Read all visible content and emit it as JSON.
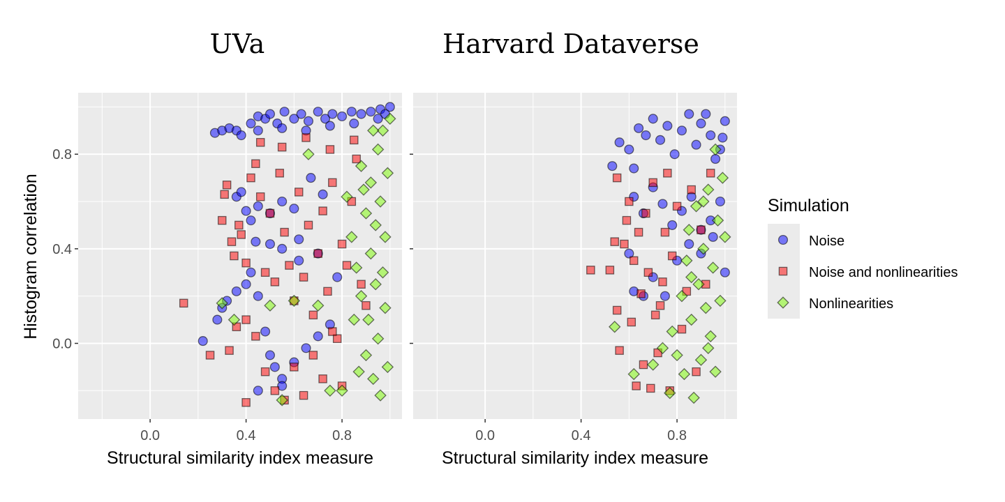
{
  "chart_data": {
    "type": "scatter",
    "facets": [
      {
        "title": "UVa"
      },
      {
        "title": "Harvard Dataverse"
      }
    ],
    "xlabel": "Structural similarity index measure",
    "ylabel": "Histogram correlation",
    "xlim": [
      -0.3,
      1.05
    ],
    "ylim": [
      -0.32,
      1.06
    ],
    "x_ticks": [
      0.0,
      0.4,
      0.8
    ],
    "x_tick_labels": [
      "0.0",
      "0.4",
      "0.8"
    ],
    "y_ticks": [
      0.0,
      0.4,
      0.8
    ],
    "y_tick_labels": [
      "0.0",
      "0.4",
      "0.8"
    ],
    "legend": {
      "title": "Simulation",
      "position": "right",
      "entries": [
        {
          "name": "Noise",
          "shape": "circle",
          "color": "#0000ff"
        },
        {
          "name": "Noise and nonlinearities",
          "shape": "square",
          "color": "#ff0000"
        },
        {
          "name": "Nonlinearities",
          "shape": "diamond",
          "color": "#7cfc00"
        }
      ]
    },
    "series": [
      {
        "name": "Noise",
        "facet": 0,
        "points": [
          [
            0.27,
            0.89
          ],
          [
            0.3,
            0.9
          ],
          [
            0.33,
            0.91
          ],
          [
            0.36,
            0.9
          ],
          [
            0.38,
            0.88
          ],
          [
            0.42,
            0.93
          ],
          [
            0.45,
            0.96
          ],
          [
            0.48,
            0.95
          ],
          [
            0.5,
            0.97
          ],
          [
            0.53,
            0.93
          ],
          [
            0.56,
            0.98
          ],
          [
            0.6,
            0.95
          ],
          [
            0.63,
            0.97
          ],
          [
            0.66,
            0.94
          ],
          [
            0.7,
            0.98
          ],
          [
            0.73,
            0.95
          ],
          [
            0.76,
            0.97
          ],
          [
            0.8,
            0.96
          ],
          [
            0.84,
            0.98
          ],
          [
            0.88,
            0.97
          ],
          [
            0.92,
            0.98
          ],
          [
            0.96,
            0.99
          ],
          [
            1.0,
            1.0
          ],
          [
            0.98,
            0.97
          ],
          [
            0.45,
            0.9
          ],
          [
            0.55,
            0.91
          ],
          [
            0.65,
            0.9
          ],
          [
            0.75,
            0.92
          ],
          [
            0.85,
            0.93
          ],
          [
            0.95,
            0.95
          ],
          [
            0.36,
            0.62
          ],
          [
            0.38,
            0.64
          ],
          [
            0.4,
            0.56
          ],
          [
            0.42,
            0.52
          ],
          [
            0.45,
            0.58
          ],
          [
            0.5,
            0.55
          ],
          [
            0.55,
            0.6
          ],
          [
            0.6,
            0.57
          ],
          [
            0.67,
            0.7
          ],
          [
            0.72,
            0.63
          ],
          [
            0.44,
            0.43
          ],
          [
            0.5,
            0.42
          ],
          [
            0.55,
            0.4
          ],
          [
            0.62,
            0.44
          ],
          [
            0.7,
            0.38
          ],
          [
            0.28,
            0.1
          ],
          [
            0.3,
            0.15
          ],
          [
            0.32,
            0.18
          ],
          [
            0.36,
            0.22
          ],
          [
            0.4,
            0.25
          ],
          [
            0.45,
            0.2
          ],
          [
            0.48,
            0.05
          ],
          [
            0.5,
            -0.05
          ],
          [
            0.52,
            -0.1
          ],
          [
            0.55,
            -0.15
          ],
          [
            0.6,
            -0.08
          ],
          [
            0.65,
            -0.02
          ],
          [
            0.7,
            0.03
          ],
          [
            0.75,
            0.08
          ],
          [
            0.22,
            0.01
          ],
          [
            0.45,
            -0.2
          ],
          [
            0.55,
            -0.18
          ],
          [
            0.42,
            0.3
          ],
          [
            0.62,
            0.35
          ],
          [
            0.78,
            0.28
          ]
        ]
      },
      {
        "name": "Noise and nonlinearities",
        "facet": 0,
        "points": [
          [
            0.14,
            0.17
          ],
          [
            0.25,
            -0.05
          ],
          [
            0.33,
            -0.03
          ],
          [
            0.3,
            0.52
          ],
          [
            0.32,
            0.67
          ],
          [
            0.31,
            0.63
          ],
          [
            0.34,
            0.43
          ],
          [
            0.35,
            0.37
          ],
          [
            0.37,
            0.5
          ],
          [
            0.38,
            0.46
          ],
          [
            0.4,
            0.34
          ],
          [
            0.4,
            -0.25
          ],
          [
            0.42,
            0.7
          ],
          [
            0.44,
            0.76
          ],
          [
            0.46,
            0.62
          ],
          [
            0.48,
            0.3
          ],
          [
            0.5,
            0.55
          ],
          [
            0.52,
            0.26
          ],
          [
            0.54,
            0.72
          ],
          [
            0.56,
            0.47
          ],
          [
            0.58,
            0.33
          ],
          [
            0.6,
            0.18
          ],
          [
            0.62,
            0.64
          ],
          [
            0.64,
            0.28
          ],
          [
            0.66,
            0.5
          ],
          [
            0.68,
            0.12
          ],
          [
            0.7,
            0.38
          ],
          [
            0.72,
            0.56
          ],
          [
            0.74,
            0.22
          ],
          [
            0.76,
            0.68
          ],
          [
            0.78,
            0.02
          ],
          [
            0.8,
            0.42
          ],
          [
            0.82,
            0.33
          ],
          [
            0.84,
            0.6
          ],
          [
            0.86,
            0.78
          ],
          [
            0.88,
            0.25
          ],
          [
            0.9,
            0.16
          ],
          [
            0.36,
            0.07
          ],
          [
            0.4,
            0.1
          ],
          [
            0.44,
            0.03
          ],
          [
            0.48,
            -0.12
          ],
          [
            0.52,
            -0.2
          ],
          [
            0.56,
            -0.24
          ],
          [
            0.6,
            -0.1
          ],
          [
            0.64,
            -0.22
          ],
          [
            0.68,
            -0.05
          ],
          [
            0.72,
            -0.15
          ],
          [
            0.76,
            0.05
          ],
          [
            0.8,
            -0.18
          ],
          [
            0.46,
            0.85
          ],
          [
            0.55,
            0.83
          ],
          [
            0.65,
            0.87
          ],
          [
            0.75,
            0.82
          ],
          [
            0.85,
            0.86
          ]
        ]
      },
      {
        "name": "Nonlinearities",
        "facet": 0,
        "points": [
          [
            0.3,
            0.17
          ],
          [
            0.35,
            0.1
          ],
          [
            0.5,
            0.16
          ],
          [
            0.55,
            -0.24
          ],
          [
            0.6,
            0.18
          ],
          [
            0.66,
            0.8
          ],
          [
            0.7,
            0.16
          ],
          [
            0.75,
            -0.2
          ],
          [
            0.8,
            -0.2
          ],
          [
            0.82,
            0.62
          ],
          [
            0.84,
            0.45
          ],
          [
            0.86,
            0.32
          ],
          [
            0.88,
            0.2
          ],
          [
            0.88,
            0.75
          ],
          [
            0.9,
            0.55
          ],
          [
            0.9,
            -0.05
          ],
          [
            0.91,
            0.1
          ],
          [
            0.92,
            0.38
          ],
          [
            0.92,
            0.68
          ],
          [
            0.93,
            -0.15
          ],
          [
            0.94,
            0.25
          ],
          [
            0.94,
            0.5
          ],
          [
            0.95,
            0.82
          ],
          [
            0.95,
            0.02
          ],
          [
            0.96,
            0.6
          ],
          [
            0.96,
            -0.22
          ],
          [
            0.97,
            0.3
          ],
          [
            0.97,
            0.9
          ],
          [
            0.98,
            0.15
          ],
          [
            0.98,
            0.45
          ],
          [
            0.99,
            0.72
          ],
          [
            0.99,
            -0.1
          ],
          [
            1.0,
            0.95
          ],
          [
            0.93,
            0.9
          ],
          [
            0.85,
            0.1
          ],
          [
            0.87,
            -0.12
          ],
          [
            0.89,
            0.65
          ]
        ]
      },
      {
        "name": "Noise",
        "facet": 1,
        "points": [
          [
            0.53,
            0.75
          ],
          [
            0.56,
            0.85
          ],
          [
            0.6,
            0.82
          ],
          [
            0.62,
            0.74
          ],
          [
            0.64,
            0.91
          ],
          [
            0.67,
            0.88
          ],
          [
            0.7,
            0.95
          ],
          [
            0.73,
            0.86
          ],
          [
            0.76,
            0.92
          ],
          [
            0.79,
            0.8
          ],
          [
            0.82,
            0.9
          ],
          [
            0.85,
            0.97
          ],
          [
            0.88,
            0.84
          ],
          [
            0.9,
            0.93
          ],
          [
            0.92,
            0.97
          ],
          [
            0.94,
            0.88
          ],
          [
            0.96,
            0.78
          ],
          [
            0.98,
            0.82
          ],
          [
            1.0,
            0.94
          ],
          [
            0.99,
            0.87
          ],
          [
            0.62,
            0.62
          ],
          [
            0.66,
            0.55
          ],
          [
            0.7,
            0.66
          ],
          [
            0.74,
            0.59
          ],
          [
            0.78,
            0.5
          ],
          [
            0.82,
            0.56
          ],
          [
            0.86,
            0.62
          ],
          [
            0.9,
            0.48
          ],
          [
            0.94,
            0.52
          ],
          [
            0.98,
            0.6
          ],
          [
            0.62,
            0.22
          ],
          [
            0.66,
            0.2
          ],
          [
            0.7,
            0.28
          ],
          [
            0.75,
            0.2
          ],
          [
            0.8,
            0.35
          ],
          [
            0.85,
            0.42
          ],
          [
            0.9,
            0.38
          ],
          [
            0.95,
            0.45
          ],
          [
            1.0,
            0.3
          ],
          [
            0.6,
            0.38
          ]
        ]
      },
      {
        "name": "Noise and nonlinearities",
        "facet": 1,
        "points": [
          [
            0.44,
            0.31
          ],
          [
            0.52,
            0.31
          ],
          [
            0.55,
            0.7
          ],
          [
            0.54,
            0.43
          ],
          [
            0.55,
            0.14
          ],
          [
            0.56,
            -0.03
          ],
          [
            0.58,
            0.42
          ],
          [
            0.59,
            0.52
          ],
          [
            0.6,
            0.6
          ],
          [
            0.61,
            0.09
          ],
          [
            0.62,
            0.35
          ],
          [
            0.63,
            -0.18
          ],
          [
            0.64,
            0.47
          ],
          [
            0.65,
            0.21
          ],
          [
            0.66,
            -0.09
          ],
          [
            0.67,
            0.55
          ],
          [
            0.68,
            0.3
          ],
          [
            0.7,
            0.68
          ],
          [
            0.71,
            0.12
          ],
          [
            0.72,
            -0.04
          ],
          [
            0.74,
            0.26
          ],
          [
            0.75,
            0.47
          ],
          [
            0.76,
            0.72
          ],
          [
            0.77,
            -0.2
          ],
          [
            0.78,
            0.37
          ],
          [
            0.8,
            0.58
          ],
          [
            0.82,
            0.06
          ],
          [
            0.84,
            0.22
          ],
          [
            0.86,
            0.65
          ],
          [
            0.88,
            -0.12
          ],
          [
            0.9,
            0.48
          ],
          [
            0.92,
            0.25
          ],
          [
            0.94,
            0.72
          ],
          [
            0.69,
            -0.19
          ],
          [
            0.73,
            0.16
          ]
        ]
      },
      {
        "name": "Nonlinearities",
        "facet": 1,
        "points": [
          [
            0.54,
            0.07
          ],
          [
            0.62,
            -0.13
          ],
          [
            0.7,
            -0.09
          ],
          [
            0.74,
            -0.02
          ],
          [
            0.77,
            -0.21
          ],
          [
            0.78,
            0.05
          ],
          [
            0.8,
            -0.05
          ],
          [
            0.82,
            0.2
          ],
          [
            0.83,
            -0.13
          ],
          [
            0.84,
            0.35
          ],
          [
            0.85,
            0.48
          ],
          [
            0.86,
            0.1
          ],
          [
            0.87,
            -0.23
          ],
          [
            0.88,
            0.58
          ],
          [
            0.89,
            0.25
          ],
          [
            0.9,
            -0.07
          ],
          [
            0.91,
            0.4
          ],
          [
            0.92,
            0.15
          ],
          [
            0.93,
            0.65
          ],
          [
            0.94,
            0.03
          ],
          [
            0.95,
            0.32
          ],
          [
            0.96,
            -0.12
          ],
          [
            0.97,
            0.52
          ],
          [
            0.98,
            0.18
          ],
          [
            0.99,
            0.7
          ],
          [
            1.0,
            0.45
          ],
          [
            0.96,
            0.82
          ],
          [
            0.93,
            -0.02
          ],
          [
            0.91,
            0.6
          ],
          [
            0.86,
            0.28
          ]
        ]
      }
    ]
  }
}
